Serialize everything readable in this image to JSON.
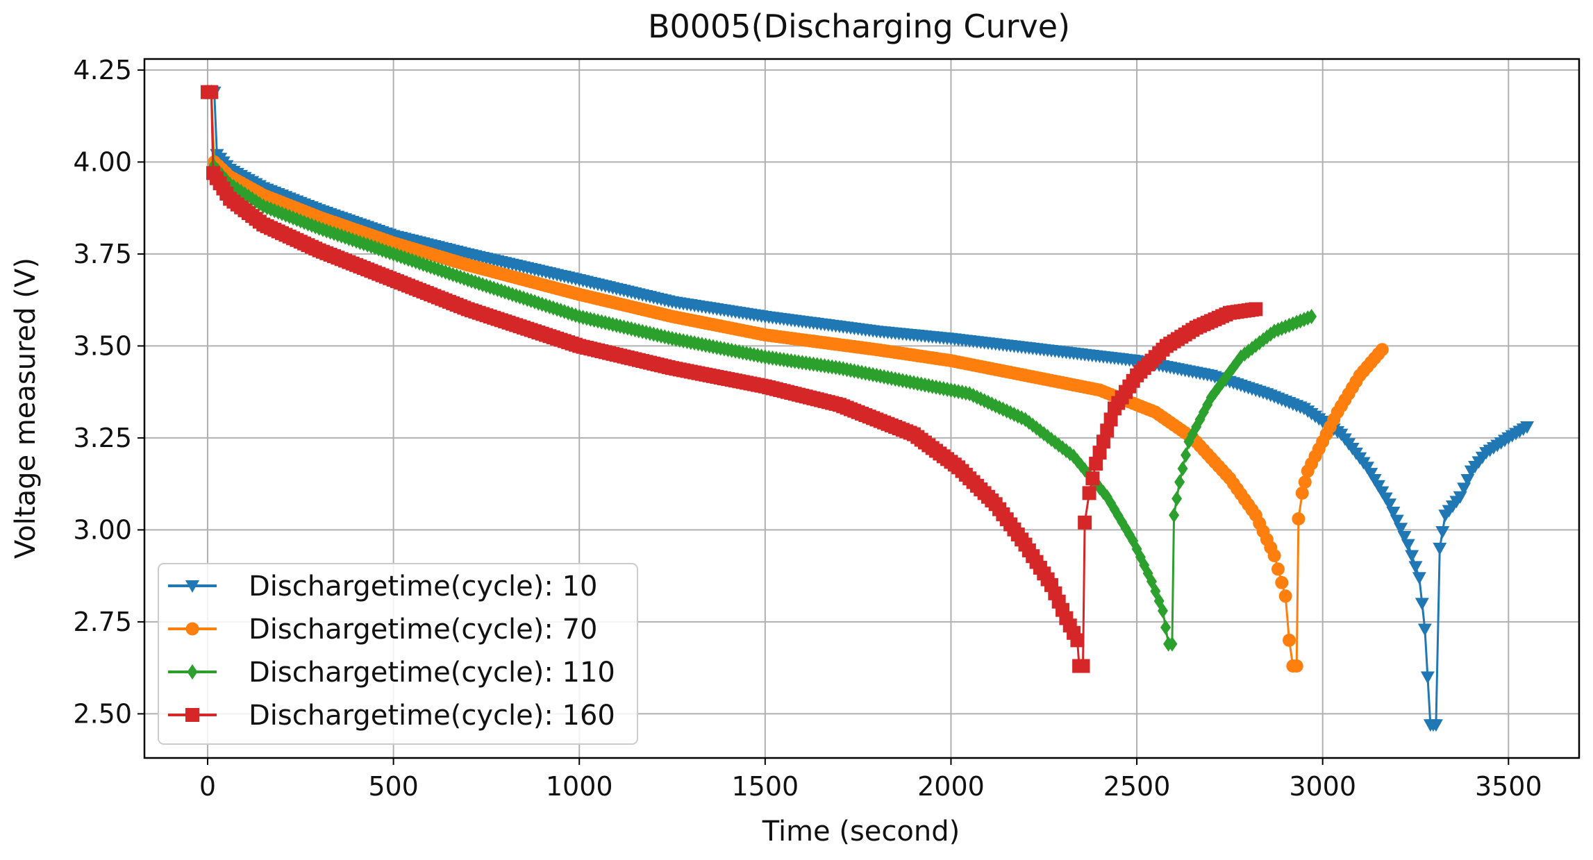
{
  "chart_data": {
    "type": "line",
    "title": "B0005(Discharging Curve)",
    "xlabel": "Time (second)",
    "ylabel": "Voltage measured (V)",
    "xlim": [
      -170,
      3690
    ],
    "ylim": [
      2.38,
      4.28
    ],
    "xticks": [
      0,
      500,
      1000,
      1500,
      2000,
      2500,
      3000,
      3500
    ],
    "xtick_labels": [
      "0",
      "500",
      "1000",
      "1500",
      "2000",
      "2500",
      "3000",
      "3500"
    ],
    "yticks": [
      2.5,
      2.75,
      3.0,
      3.25,
      3.5,
      3.75,
      4.0,
      4.25
    ],
    "ytick_labels": [
      "2.50",
      "2.75",
      "3.00",
      "3.25",
      "3.50",
      "3.75",
      "4.00",
      "4.25"
    ],
    "grid": true,
    "legend_position": "lower-left",
    "series": [
      {
        "name": "Dischargetime(cycle): 10",
        "color": "#1f77b4",
        "marker": "triangle-down",
        "points": [
          [
            0,
            4.19
          ],
          [
            18,
            4.19
          ],
          [
            25,
            4.02
          ],
          [
            60,
            3.98
          ],
          [
            150,
            3.93
          ],
          [
            300,
            3.87
          ],
          [
            500,
            3.8
          ],
          [
            700,
            3.75
          ],
          [
            1000,
            3.68
          ],
          [
            1250,
            3.62
          ],
          [
            1500,
            3.58
          ],
          [
            1800,
            3.54
          ],
          [
            2000,
            3.52
          ],
          [
            2250,
            3.49
          ],
          [
            2500,
            3.46
          ],
          [
            2700,
            3.42
          ],
          [
            2850,
            3.37
          ],
          [
            2950,
            3.33
          ],
          [
            3050,
            3.26
          ],
          [
            3120,
            3.17
          ],
          [
            3180,
            3.07
          ],
          [
            3230,
            2.96
          ],
          [
            3260,
            2.87
          ],
          [
            3275,
            2.73
          ],
          [
            3290,
            2.47
          ],
          [
            3305,
            2.47
          ],
          [
            3315,
            2.95
          ],
          [
            3330,
            3.04
          ],
          [
            3370,
            3.09
          ],
          [
            3400,
            3.16
          ],
          [
            3440,
            3.21
          ],
          [
            3500,
            3.25
          ],
          [
            3550,
            3.28
          ]
        ]
      },
      {
        "name": "Dischargetime(cycle): 70",
        "color": "#ff7f0e",
        "marker": "circle",
        "points": [
          [
            0,
            4.19
          ],
          [
            10,
            4.19
          ],
          [
            18,
            4.0
          ],
          [
            60,
            3.96
          ],
          [
            150,
            3.91
          ],
          [
            300,
            3.85
          ],
          [
            500,
            3.78
          ],
          [
            700,
            3.72
          ],
          [
            1000,
            3.64
          ],
          [
            1250,
            3.58
          ],
          [
            1500,
            3.53
          ],
          [
            1800,
            3.49
          ],
          [
            2000,
            3.46
          ],
          [
            2200,
            3.42
          ],
          [
            2400,
            3.38
          ],
          [
            2550,
            3.32
          ],
          [
            2650,
            3.25
          ],
          [
            2750,
            3.14
          ],
          [
            2820,
            3.04
          ],
          [
            2870,
            2.93
          ],
          [
            2900,
            2.82
          ],
          [
            2910,
            2.7
          ],
          [
            2920,
            2.63
          ],
          [
            2930,
            2.63
          ],
          [
            2935,
            3.03
          ],
          [
            2945,
            3.1
          ],
          [
            2960,
            3.16
          ],
          [
            2990,
            3.22
          ],
          [
            3040,
            3.32
          ],
          [
            3100,
            3.42
          ],
          [
            3160,
            3.49
          ]
        ]
      },
      {
        "name": "Dischargetime(cycle): 110",
        "color": "#2ca02c",
        "marker": "diamond",
        "points": [
          [
            0,
            4.19
          ],
          [
            10,
            4.19
          ],
          [
            16,
            3.99
          ],
          [
            60,
            3.94
          ],
          [
            150,
            3.88
          ],
          [
            300,
            3.82
          ],
          [
            500,
            3.75
          ],
          [
            700,
            3.68
          ],
          [
            1000,
            3.58
          ],
          [
            1250,
            3.52
          ],
          [
            1500,
            3.47
          ],
          [
            1700,
            3.44
          ],
          [
            1900,
            3.4
          ],
          [
            2050,
            3.37
          ],
          [
            2200,
            3.3
          ],
          [
            2330,
            3.2
          ],
          [
            2420,
            3.09
          ],
          [
            2490,
            2.97
          ],
          [
            2540,
            2.86
          ],
          [
            2570,
            2.78
          ],
          [
            2585,
            2.69
          ],
          [
            2595,
            2.69
          ],
          [
            2600,
            3.04
          ],
          [
            2615,
            3.13
          ],
          [
            2640,
            3.24
          ],
          [
            2700,
            3.36
          ],
          [
            2780,
            3.47
          ],
          [
            2870,
            3.54
          ],
          [
            2970,
            3.58
          ]
        ]
      },
      {
        "name": "Dischargetime(cycle): 160",
        "color": "#d62728",
        "marker": "square",
        "points": [
          [
            0,
            4.19
          ],
          [
            10,
            4.19
          ],
          [
            15,
            3.97
          ],
          [
            60,
            3.9
          ],
          [
            150,
            3.83
          ],
          [
            300,
            3.76
          ],
          [
            500,
            3.68
          ],
          [
            700,
            3.6
          ],
          [
            1000,
            3.5
          ],
          [
            1250,
            3.44
          ],
          [
            1500,
            3.39
          ],
          [
            1700,
            3.34
          ],
          [
            1900,
            3.26
          ],
          [
            2020,
            3.17
          ],
          [
            2120,
            3.07
          ],
          [
            2200,
            2.96
          ],
          [
            2270,
            2.85
          ],
          [
            2310,
            2.76
          ],
          [
            2340,
            2.7
          ],
          [
            2345,
            2.63
          ],
          [
            2355,
            2.63
          ],
          [
            2360,
            3.02
          ],
          [
            2372,
            3.1
          ],
          [
            2390,
            3.18
          ],
          [
            2440,
            3.33
          ],
          [
            2500,
            3.42
          ],
          [
            2580,
            3.5
          ],
          [
            2660,
            3.55
          ],
          [
            2750,
            3.59
          ],
          [
            2820,
            3.6
          ]
        ]
      }
    ]
  }
}
